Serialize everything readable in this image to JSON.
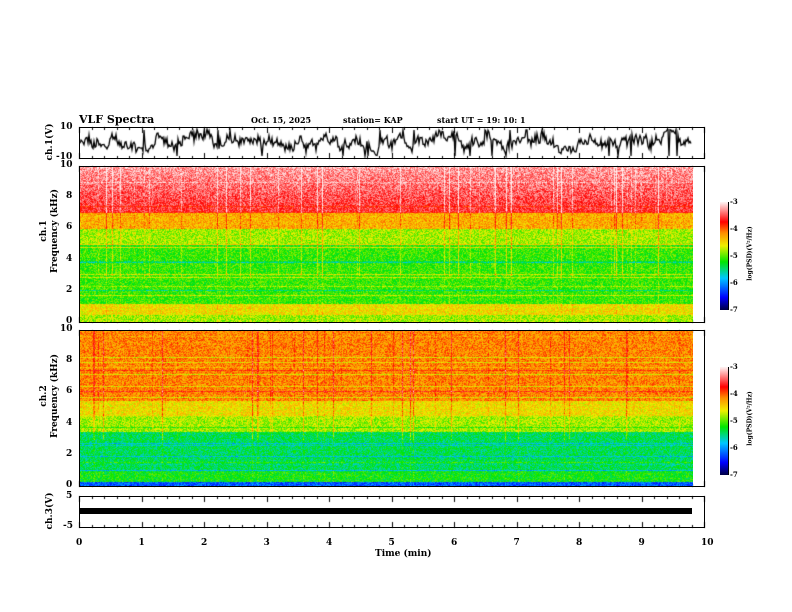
{
  "header": {
    "title": "VLF Spectra",
    "date": "Oct. 15, 2025",
    "station": "station= KAP",
    "start": "start  UT =   19: 10: 1"
  },
  "panels": {
    "ch1": {
      "label": "ch.1(V)",
      "ymax": "10",
      "ymin": "-10"
    },
    "spec1": {
      "label_l1": "ch.1",
      "label_l2": "Frequency (kHz)",
      "yticks": [
        "0",
        "2",
        "4",
        "6",
        "8",
        "10"
      ]
    },
    "spec2": {
      "label_l1": "ch.2",
      "label_l2": "Frequency (kHz)",
      "yticks": [
        "0",
        "2",
        "4",
        "6",
        "8",
        "10"
      ]
    },
    "ch3": {
      "label": "ch.3(V)",
      "ymax": "5",
      "ymin": "-5",
      "level": -2
    }
  },
  "colorbar": {
    "label": "log(PSD)(V²/Hz)",
    "ticks": [
      "-3",
      "-4",
      "-5",
      "-6",
      "-7"
    ],
    "range": [
      -7,
      -3
    ]
  },
  "chart_data": {
    "type": "heatmap",
    "title": "VLF Spectra",
    "xlabel": "Time (min)",
    "xticks": [
      "0",
      "1",
      "2",
      "3",
      "4",
      "5",
      "6",
      "7",
      "8",
      "9",
      "10"
    ],
    "xlim": [
      0,
      10
    ],
    "data_end_min": 9.8,
    "ylim_freq_khz": [
      0,
      10
    ],
    "colors": {
      "line": "#000000"
    }
  }
}
